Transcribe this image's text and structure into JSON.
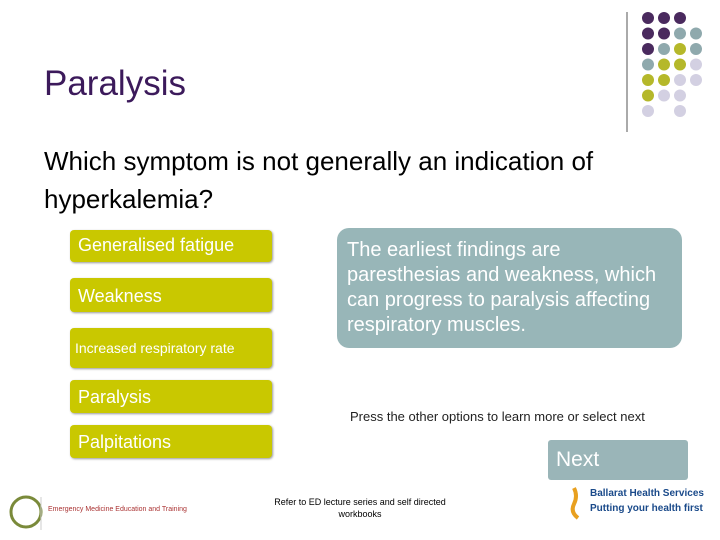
{
  "title": "Paralysis",
  "question": "Which symptom is not generally an indication of hyperkalemia?",
  "options": [
    "Generalised fatigue",
    "Weakness",
    "Increased respiratory rate",
    "Paralysis",
    "Palpitations"
  ],
  "feedback": "The earliest findings are paresthesias and weakness, which can progress to paralysis affecting respiratory muscles.",
  "instruction": "Press the other options to learn more or select next",
  "next_button": "Next",
  "footer": "Refer to ED lecture series and self directed workbooks",
  "logos": {
    "left": "Emergency Medicine Education and Training",
    "right_name": "Ballarat Health Services",
    "right_tagline": "Putting your health first"
  }
}
